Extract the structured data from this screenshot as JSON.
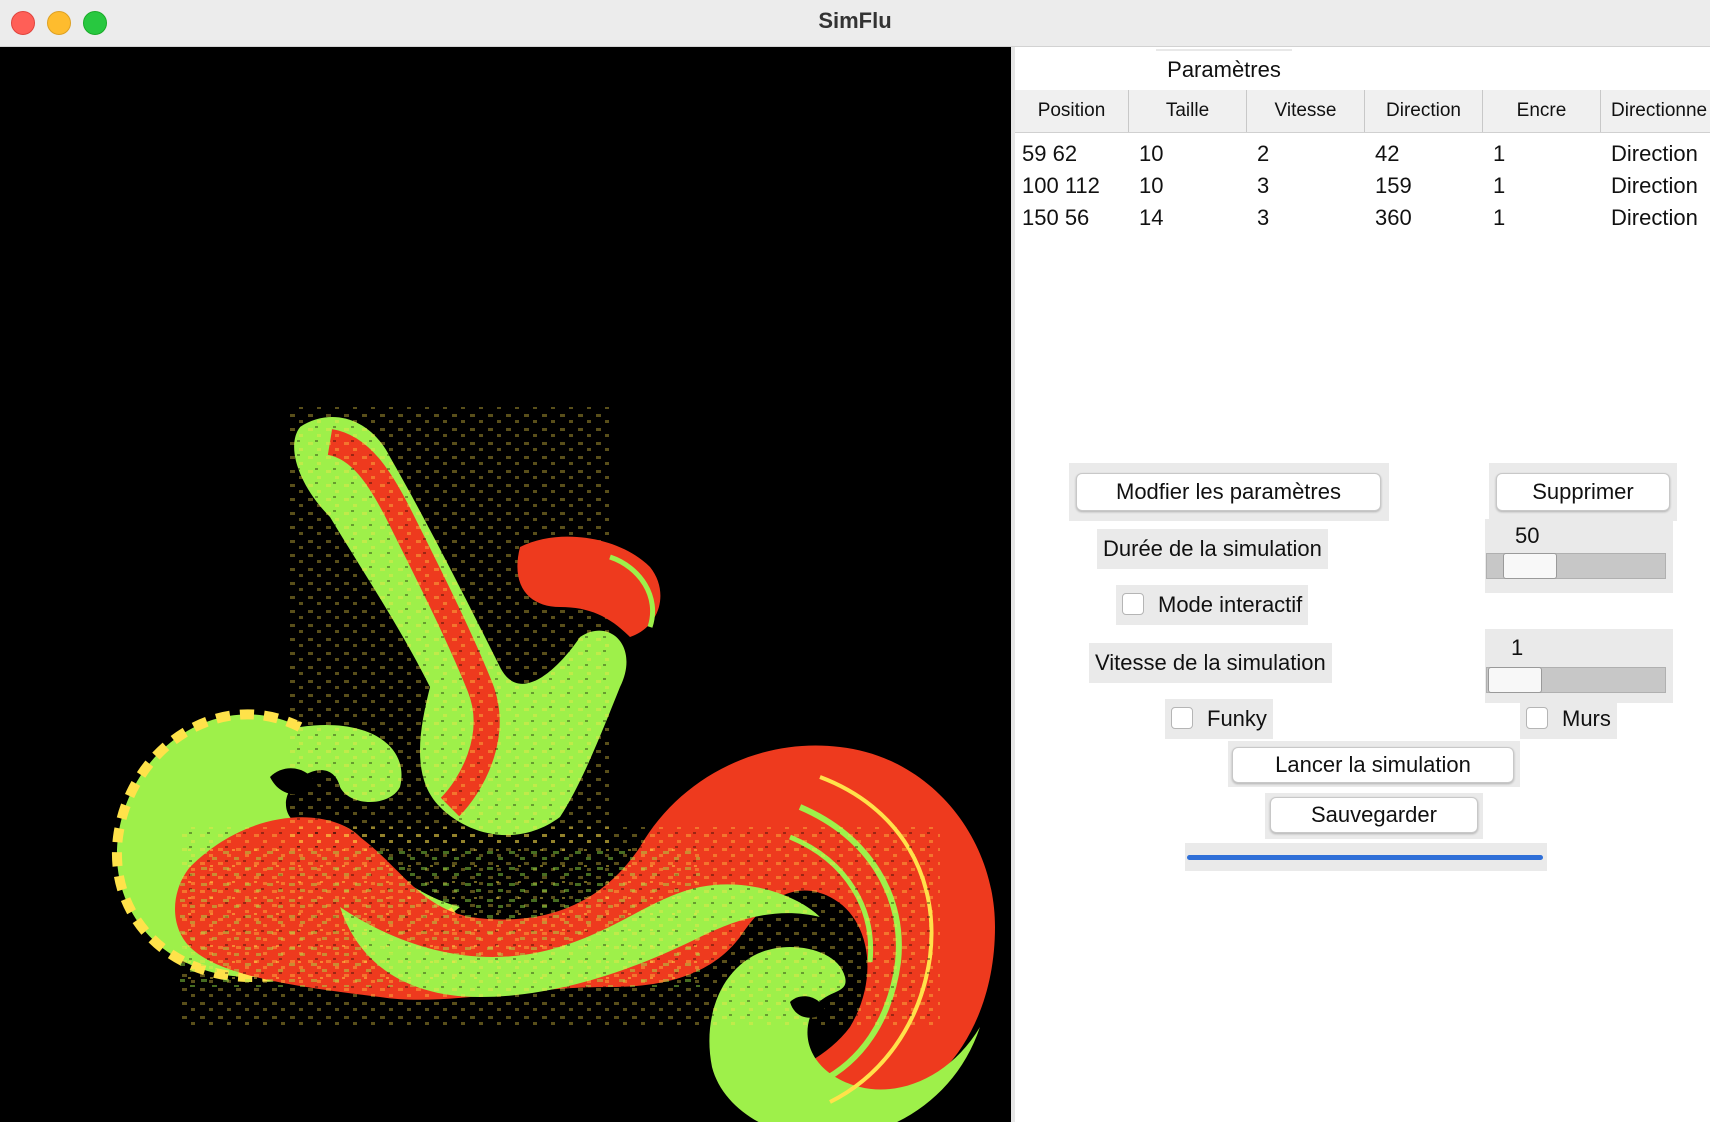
{
  "window": {
    "title": "SimFlu"
  },
  "tab": {
    "label": "Paramètres"
  },
  "table": {
    "headers": [
      "Position",
      "Taille",
      "Vitesse",
      "Direction",
      "Encre",
      "Directionne"
    ],
    "rows": [
      [
        "59 62",
        "10",
        "2",
        "42",
        "1",
        "Direction"
      ],
      [
        "100 112",
        "10",
        "3",
        "159",
        "1",
        "Direction"
      ],
      [
        "150 56",
        "14",
        "3",
        "360",
        "1",
        "Direction"
      ]
    ]
  },
  "controls": {
    "modify_label": "Modfier les paramètres",
    "delete_label": "Supprimer",
    "duration_label": "Durée de la simulation",
    "duration_value": "50",
    "interactive_label": "Mode interactif",
    "speed_label": "Vitesse de la simulation",
    "speed_value": "1",
    "funky_label": "Funky",
    "walls_label": "Murs",
    "launch_label": "Lancer la simulation",
    "save_label": "Sauvegarder"
  },
  "colors": {
    "ink_red": "#ee3a1e",
    "ink_green": "#9ef04a",
    "ink_yellow": "#ffe24a",
    "progress": "#2f6fd8"
  }
}
